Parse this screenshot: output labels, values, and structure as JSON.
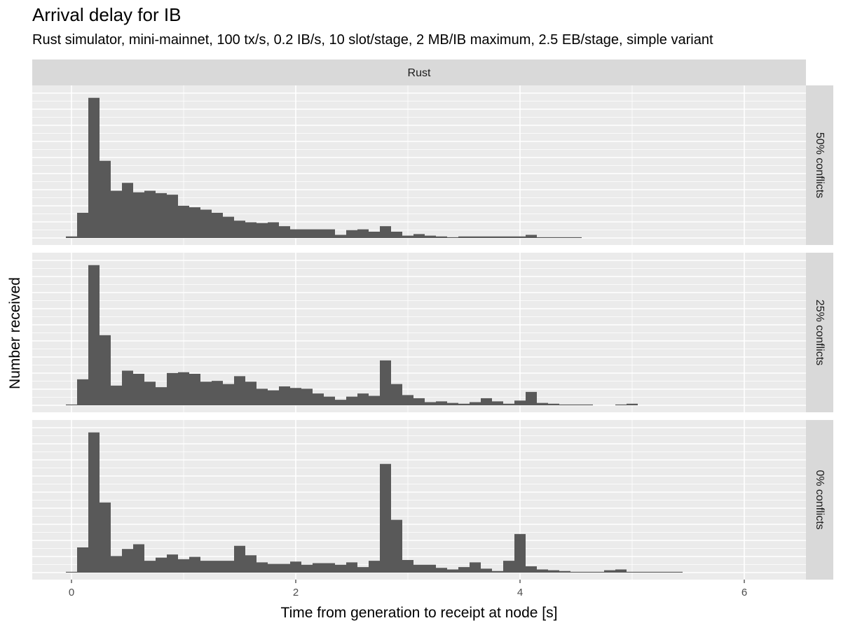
{
  "chart_data": {
    "type": "bar",
    "title": "Arrival delay for IB",
    "subtitle": "Rust simulator, mini-mainnet, 100 tx/s, 0.2 IB/s, 10 slot/stage, 2 MB/IB maximum, 2.5 EB/stage, simple variant",
    "xlabel": "Time from generation to receipt at node [s]",
    "ylabel": "Number received",
    "column_strip": "Rust",
    "x_ticks": [
      "0",
      "2",
      "4",
      "6"
    ],
    "x_tick_values": [
      0,
      2,
      4,
      6
    ],
    "xlim": [
      -0.35,
      6.55
    ],
    "bin_width": 0.1,
    "y_ticks_visible": false,
    "grid": true,
    "panels": [
      {
        "label": "50% conflicts",
        "ylim": [
          0,
          9.2
        ],
        "bin_starts": [
          -0.05,
          0.05,
          0.15,
          0.25,
          0.35,
          0.45,
          0.55,
          0.65,
          0.75,
          0.85,
          0.95,
          1.05,
          1.15,
          1.25,
          1.35,
          1.45,
          1.55,
          1.65,
          1.75,
          1.85,
          1.95,
          2.05,
          2.15,
          2.25,
          2.35,
          2.45,
          2.55,
          2.65,
          2.75,
          2.85,
          2.95,
          3.05,
          3.15,
          3.25,
          3.35,
          3.45,
          3.55,
          3.65,
          3.75,
          3.85,
          3.95,
          4.05,
          4.15,
          4.25,
          4.35,
          4.45
        ],
        "values": [
          0.1,
          1.6,
          8.9,
          4.9,
          3.0,
          3.5,
          2.9,
          3.0,
          2.85,
          2.75,
          2.05,
          1.95,
          1.8,
          1.6,
          1.35,
          1.1,
          1.0,
          0.95,
          1.0,
          0.75,
          0.55,
          0.55,
          0.55,
          0.55,
          0.2,
          0.5,
          0.55,
          0.4,
          0.75,
          0.4,
          0.15,
          0.25,
          0.15,
          0.1,
          0.05,
          0.1,
          0.1,
          0.1,
          0.1,
          0.1,
          0.1,
          0.2,
          0.05,
          0.05,
          0.05,
          0.05
        ]
      },
      {
        "label": "25% conflicts",
        "ylim": [
          0,
          9.2
        ],
        "bin_starts": [
          -0.05,
          0.05,
          0.15,
          0.25,
          0.35,
          0.45,
          0.55,
          0.65,
          0.75,
          0.85,
          0.95,
          1.05,
          1.15,
          1.25,
          1.35,
          1.45,
          1.55,
          1.65,
          1.75,
          1.85,
          1.95,
          2.05,
          2.15,
          2.25,
          2.35,
          2.45,
          2.55,
          2.65,
          2.75,
          2.85,
          2.95,
          3.05,
          3.15,
          3.25,
          3.35,
          3.45,
          3.55,
          3.65,
          3.75,
          3.85,
          3.95,
          4.05,
          4.15,
          4.25,
          4.35,
          4.45,
          4.55,
          4.65,
          4.75,
          4.85,
          4.95
        ],
        "values": [
          0.05,
          1.65,
          8.9,
          4.45,
          1.25,
          2.2,
          2.0,
          1.5,
          1.15,
          2.05,
          2.1,
          2.0,
          1.5,
          1.55,
          1.35,
          1.85,
          1.5,
          1.05,
          0.95,
          1.2,
          1.1,
          1.05,
          0.75,
          0.55,
          0.35,
          0.55,
          0.75,
          0.6,
          2.85,
          1.35,
          0.65,
          0.45,
          0.2,
          0.25,
          0.15,
          0.1,
          0.2,
          0.45,
          0.25,
          0.1,
          0.3,
          0.85,
          0.15,
          0.1,
          0.05,
          0.05,
          0.05,
          0.0,
          0.0,
          0.05,
          0.1
        ]
      },
      {
        "label": "0% conflicts",
        "ylim": [
          0,
          9.2
        ],
        "bin_starts": [
          -0.05,
          0.05,
          0.15,
          0.25,
          0.35,
          0.45,
          0.55,
          0.65,
          0.75,
          0.85,
          0.95,
          1.05,
          1.15,
          1.25,
          1.35,
          1.45,
          1.55,
          1.65,
          1.75,
          1.85,
          1.95,
          2.05,
          2.15,
          2.25,
          2.35,
          2.45,
          2.55,
          2.65,
          2.75,
          2.85,
          2.95,
          3.05,
          3.15,
          3.25,
          3.35,
          3.45,
          3.55,
          3.65,
          3.75,
          3.85,
          3.95,
          4.05,
          4.15,
          4.25,
          4.35,
          4.45,
          4.55,
          4.65,
          4.75,
          4.85,
          4.95,
          5.05,
          5.15,
          5.25,
          5.35
        ],
        "values": [
          0.05,
          1.6,
          8.9,
          4.45,
          1.05,
          1.5,
          1.8,
          0.75,
          0.95,
          1.15,
          0.85,
          1.0,
          0.75,
          0.75,
          0.75,
          1.7,
          1.1,
          0.65,
          0.55,
          0.55,
          0.7,
          0.5,
          0.6,
          0.6,
          0.5,
          0.65,
          0.35,
          0.75,
          6.9,
          3.35,
          0.8,
          0.5,
          0.5,
          0.3,
          0.2,
          0.35,
          0.65,
          0.25,
          0.1,
          0.75,
          2.45,
          0.4,
          0.2,
          0.15,
          0.1,
          0.05,
          0.05,
          0.05,
          0.15,
          0.2,
          0.05,
          0.05,
          0.05,
          0.05,
          0.05
        ]
      }
    ],
    "bar_color": "#595959",
    "panel_background": "#ebebeb",
    "strip_background": "#d9d9d9",
    "grid_color": "#ffffff"
  }
}
